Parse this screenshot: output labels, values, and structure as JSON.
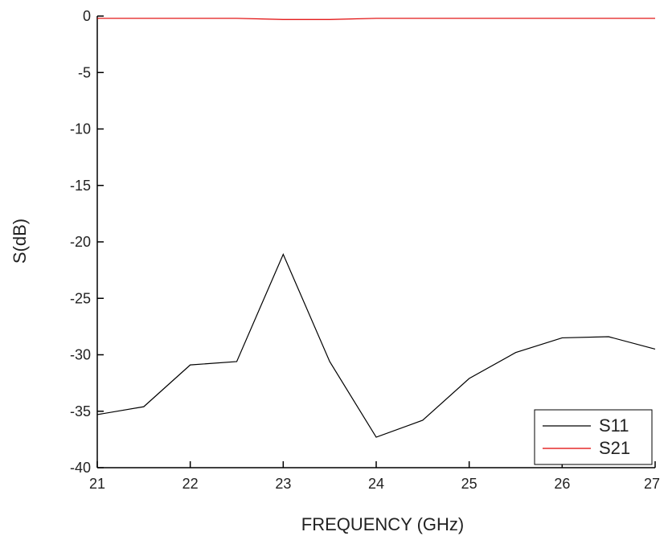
{
  "chart_data": {
    "type": "line",
    "x_label": "FREQUENCY (GHz)",
    "y_label": "S(dB)",
    "x": [
      21,
      21.5,
      22,
      22.5,
      23,
      23.5,
      24,
      24.5,
      25,
      25.5,
      26,
      26.5,
      27
    ],
    "series": [
      {
        "name": "S11",
        "color": "#000000",
        "values": [
          -35.3,
          -34.6,
          -30.9,
          -30.6,
          -21.1,
          -30.6,
          -37.3,
          -35.8,
          -32.1,
          -29.8,
          -28.5,
          -28.4,
          -29.5
        ]
      },
      {
        "name": "S21",
        "color": "#e00000",
        "values": [
          -0.2,
          -0.2,
          -0.2,
          -0.2,
          -0.3,
          -0.3,
          -0.2,
          -0.2,
          -0.2,
          -0.2,
          -0.2,
          -0.2,
          -0.2
        ]
      }
    ],
    "xlim": [
      21,
      27
    ],
    "ylim": [
      -40,
      0
    ],
    "xticks": [
      21,
      22,
      23,
      24,
      25,
      26,
      27
    ],
    "yticks": [
      -40,
      -35,
      -30,
      -25,
      -20,
      -15,
      -10,
      -5,
      0
    ],
    "legend": "lower right"
  }
}
